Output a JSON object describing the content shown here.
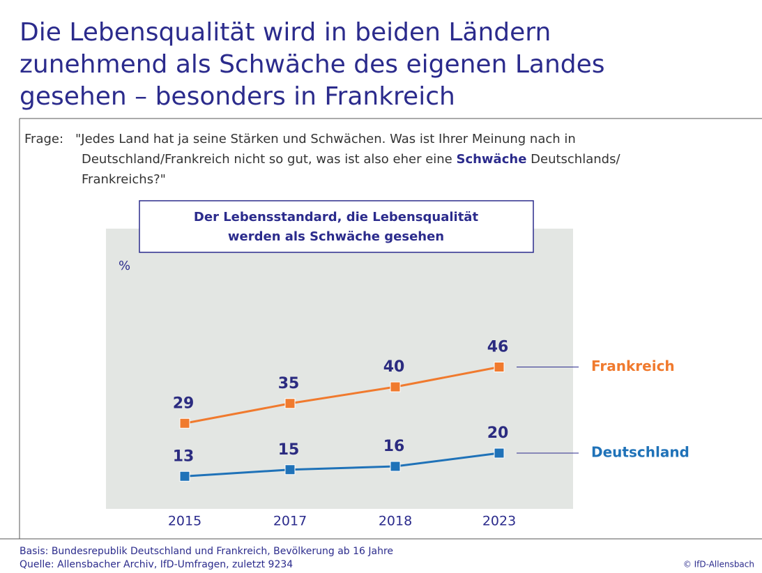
{
  "chart_data": {
    "type": "line",
    "title": [
      "Die Lebensqualität wird in beiden Ländern",
      "zunehmend als Schwäche des eigenen Landes",
      "gesehen – besonders in Frankreich"
    ],
    "question": {
      "label": "Frage:",
      "line1": "\"Jedes Land hat ja seine Stärken und Schwächen. Was ist Ihrer Meinung nach in",
      "line2a": "Deutschland/Frankreich nicht so gut, was ist also eher eine ",
      "line2bold": "Schwäche",
      "line2b": " Deutschlands/",
      "line3": "Frankreichs?\""
    },
    "chart_title": [
      "Der Lebensstandard, die Lebensqualität",
      "werden als Schwäche gesehen"
    ],
    "y_unit": "%",
    "categories": [
      "2015",
      "2017",
      "2018",
      "2023"
    ],
    "ylim": [
      0,
      80
    ],
    "series": [
      {
        "name": "Frankreich",
        "color": "#f07a2e",
        "values": [
          29,
          35,
          40,
          46
        ]
      },
      {
        "name": "Deutschland",
        "color": "#1f72b8",
        "values": [
          13,
          15,
          16,
          20
        ]
      }
    ],
    "footnotes": [
      "Basis: Bundesrepublik Deutschland und Frankreich, Bevölkerung ab 16 Jahre",
      "Quelle: Allensbacher Archiv, IfD-Umfragen, zuletzt 9234"
    ],
    "copyright": "© IfD-Allensbach"
  }
}
